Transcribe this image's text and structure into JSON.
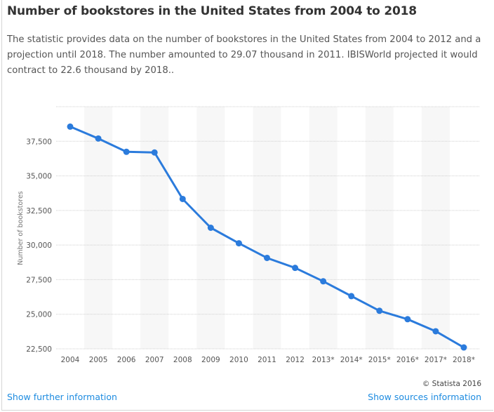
{
  "title": "Number of bookstores in the United States from 2004 to 2018",
  "description": "The statistic provides data on the number of bookstores in the United States from 2004 to 2012 and a projection until 2018. The number amounted to 29.07 thousand in 2011. IBISWorld projected it would contract to 22.6 thousand by 2018..",
  "footer": {
    "copyright": "© Statista 2016",
    "further_info": "Show further information",
    "sources_info": "Show sources information"
  },
  "chart_data": {
    "type": "line",
    "title": "",
    "xlabel": "",
    "ylabel": "Number of bookstores",
    "categories": [
      "2004",
      "2005",
      "2006",
      "2007",
      "2008",
      "2009",
      "2010",
      "2011",
      "2012",
      "2013*",
      "2014*",
      "2015*",
      "2016*",
      "2017*",
      "2018*"
    ],
    "values": [
      38560,
      37700,
      36740,
      36690,
      33330,
      31250,
      30130,
      29070,
      28350,
      27380,
      26310,
      25250,
      24640,
      23770,
      22600
    ],
    "ylim": [
      22500,
      40000
    ],
    "yticks": [
      22500,
      25000,
      27500,
      30000,
      32500,
      35000,
      37500
    ],
    "ytick_labels": [
      "22,500",
      "25,000",
      "27,500",
      "30,000",
      "32,500",
      "35,000",
      "37,500"
    ],
    "grid": true,
    "line_color": "#2b7bdc"
  }
}
